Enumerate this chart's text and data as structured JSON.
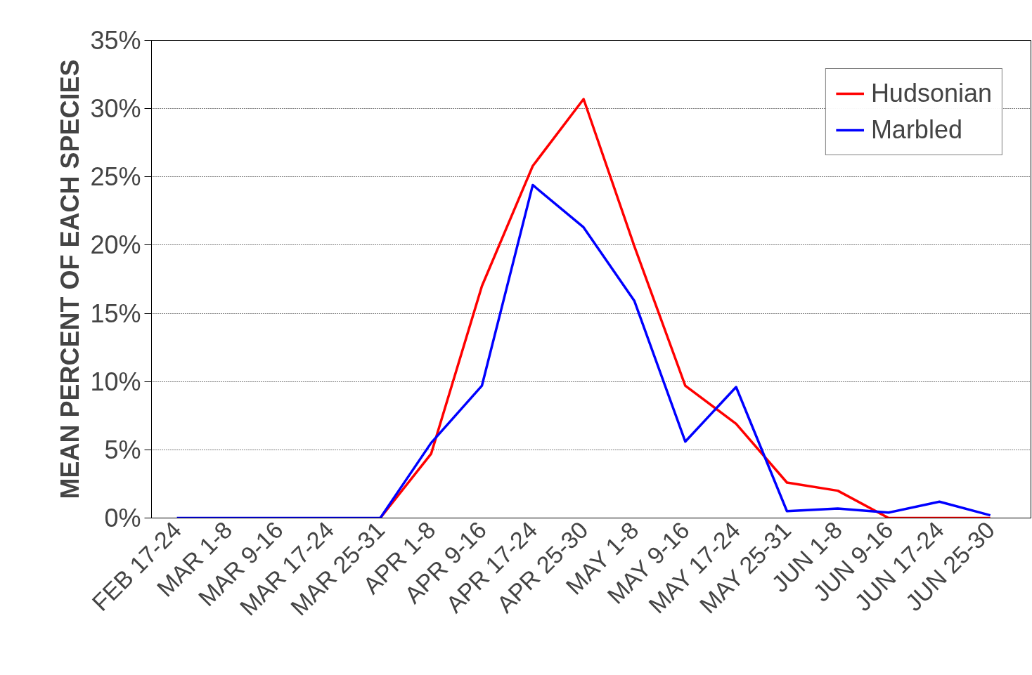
{
  "chart_data": {
    "type": "line",
    "ylabel": "MEAN PERCENT OF EACH SPECIES",
    "categories": [
      "FEB 17-24",
      "MAR 1-8",
      "MAR 9-16",
      "MAR 17-24",
      "MAR 25-31",
      "APR 1-8",
      "APR 9-16",
      "APR 17-24",
      "APR 25-30",
      "MAY 1-8",
      "MAY 9-16",
      "MAY 17-24",
      "MAY 25-31",
      "JUN 1-8",
      "JUN 9-16",
      "JUN 17-24",
      "JUN 25-30"
    ],
    "series": [
      {
        "name": "Hudsonian",
        "color": "#ff0000",
        "values": [
          null,
          null,
          null,
          null,
          0,
          4.7,
          17.0,
          25.8,
          30.7,
          19.9,
          9.7,
          6.9,
          2.6,
          2.0,
          0,
          0,
          0
        ]
      },
      {
        "name": "Marbled",
        "color": "#0000ff",
        "values": [
          0,
          0,
          0,
          0,
          0,
          5.5,
          9.7,
          24.4,
          21.3,
          15.9,
          5.6,
          9.6,
          0.5,
          0.7,
          0.4,
          1.2,
          0.2
        ]
      }
    ],
    "ylim": [
      0,
      35
    ],
    "yticks": [
      {
        "value": 0,
        "label": "0%"
      },
      {
        "value": 5,
        "label": "5%"
      },
      {
        "value": 10,
        "label": "10%"
      },
      {
        "value": 15,
        "label": "15%"
      },
      {
        "value": 20,
        "label": "20%"
      },
      {
        "value": 25,
        "label": "25%"
      },
      {
        "value": 30,
        "label": "30%"
      },
      {
        "value": 35,
        "label": "35%"
      }
    ],
    "grid": "y",
    "legend": "top right",
    "line_style": "solid",
    "marker": "none"
  }
}
